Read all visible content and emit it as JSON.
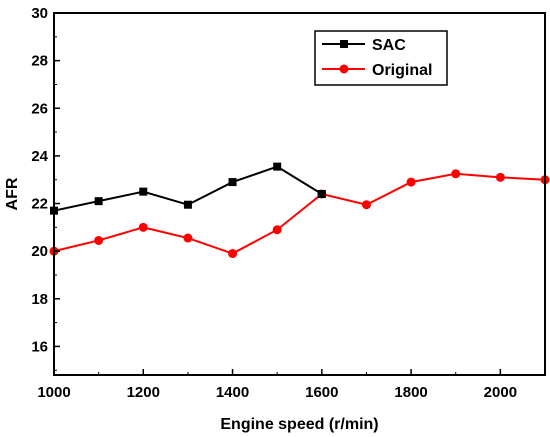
{
  "chart_data": {
    "type": "line",
    "xlabel": "Engine speed (r/min)",
    "ylabel": "AFR",
    "xlim": [
      1000,
      2100
    ],
    "ylim": [
      14.8,
      30
    ],
    "x_ticks": [
      1000,
      1200,
      1400,
      1600,
      1800,
      2000
    ],
    "y_ticks": [
      16,
      18,
      20,
      22,
      24,
      26,
      28,
      30
    ],
    "grid": false,
    "legend_position": "top-right",
    "series": [
      {
        "name": "SAC",
        "color": "#000000",
        "marker": "square",
        "x": [
          1000,
          1100,
          1200,
          1300,
          1400,
          1500,
          1600
        ],
        "y": [
          21.7,
          22.1,
          22.5,
          21.95,
          22.9,
          23.55,
          22.4
        ]
      },
      {
        "name": "Original",
        "color": "#ff0000",
        "marker": "circle",
        "x": [
          1000,
          1100,
          1200,
          1300,
          1400,
          1500,
          1600,
          1700,
          1800,
          1900,
          2000,
          2100
        ],
        "y": [
          20.0,
          20.45,
          21.0,
          20.55,
          19.9,
          20.9,
          22.4,
          21.95,
          22.9,
          23.25,
          23.1,
          23.0
        ]
      }
    ]
  }
}
